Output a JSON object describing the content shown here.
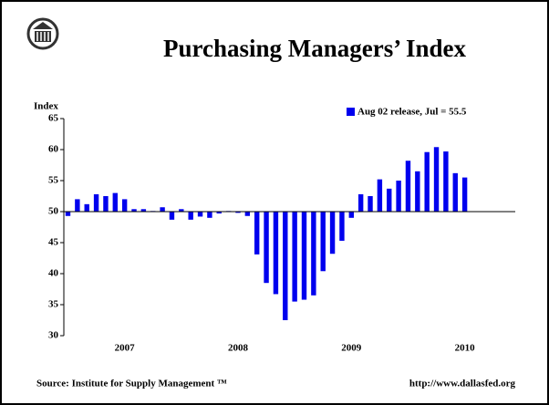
{
  "chart_data": {
    "type": "bar",
    "title": "Purchasing Managers’ Index",
    "y_label": "Index",
    "source": "Source: Institute for Supply Management ™",
    "url": "http://www.dallasfed.org",
    "categories": [
      null,
      null,
      null,
      null,
      null,
      null,
      "2007",
      null,
      null,
      null,
      null,
      null,
      null,
      null,
      null,
      null,
      null,
      null,
      "2008",
      null,
      null,
      null,
      null,
      null,
      null,
      null,
      null,
      null,
      null,
      null,
      "2009",
      null,
      null,
      null,
      null,
      null,
      null,
      null,
      null,
      null,
      null,
      null,
      "2010"
    ],
    "series": [
      {
        "name": "Aug 02 release, Jul = 55.5",
        "color": "#0000ee",
        "values": [
          49.3,
          52.0,
          51.2,
          52.8,
          52.5,
          53.0,
          52.0,
          50.4,
          50.4,
          50.1,
          50.7,
          48.7,
          50.4,
          48.7,
          49.2,
          49.0,
          49.7,
          50.1,
          49.8,
          49.3,
          43.1,
          38.5,
          36.7,
          32.5,
          35.5,
          35.8,
          36.5,
          40.4,
          43.2,
          45.3,
          49.0,
          52.8,
          52.5,
          55.2,
          53.7,
          55.0,
          58.2,
          56.5,
          59.6,
          60.4,
          59.7,
          56.2,
          55.5
        ]
      }
    ],
    "ylim": [
      30,
      65
    ],
    "yticks": [
      30,
      35,
      40,
      45,
      50,
      55,
      60,
      65
    ],
    "x_axis_crosses": 50,
    "grid": false,
    "legend": "top-right"
  }
}
